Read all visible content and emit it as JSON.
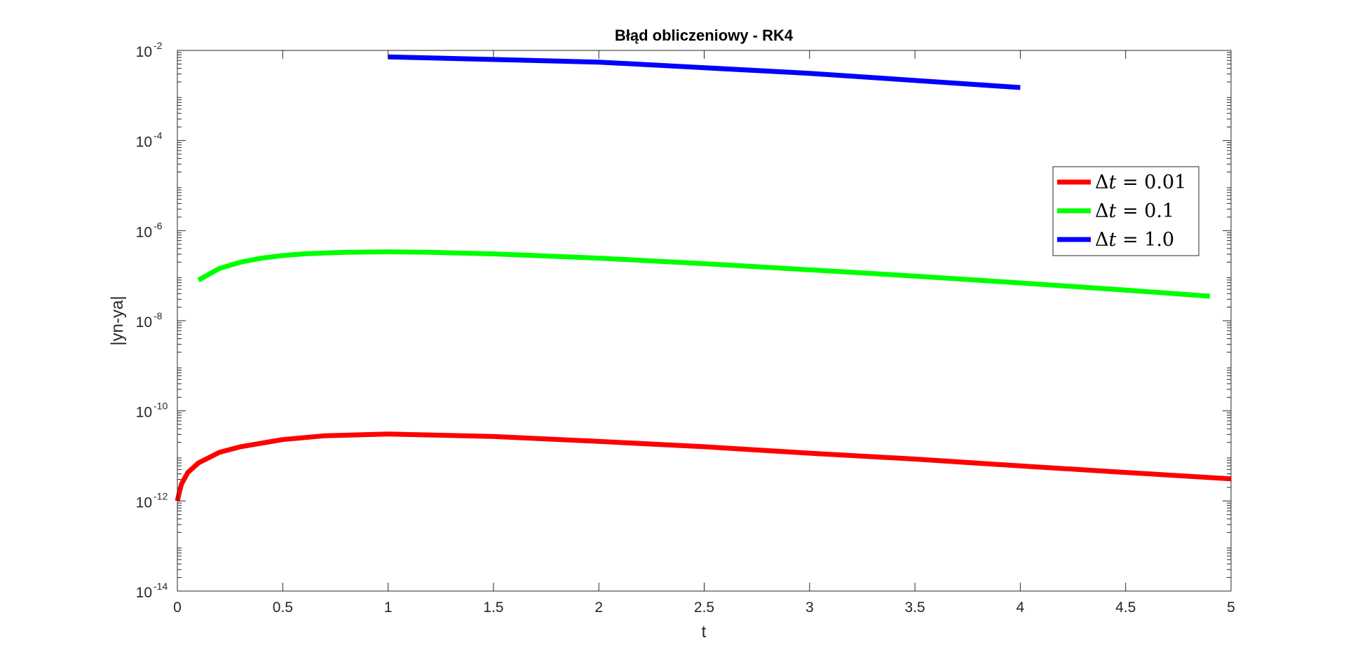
{
  "chart_data": {
    "type": "line",
    "title": "Błąd obliczeniowy - RK4",
    "xlabel": "t",
    "ylabel": "|yn-ya|",
    "xlim": [
      0,
      5
    ],
    "ylim": [
      1e-14,
      0.01
    ],
    "yscale": "log",
    "grid": false,
    "legend_position": "right",
    "x_ticks": [
      "0",
      "0.5",
      "1",
      "1.5",
      "2",
      "2.5",
      "3",
      "3.5",
      "4",
      "4.5",
      "5"
    ],
    "y_ticks": [
      {
        "base": "10",
        "exp": "-14"
      },
      {
        "base": "10",
        "exp": "-12"
      },
      {
        "base": "10",
        "exp": "-10"
      },
      {
        "base": "10",
        "exp": "-8"
      },
      {
        "base": "10",
        "exp": "-6"
      },
      {
        "base": "10",
        "exp": "-4"
      },
      {
        "base": "10",
        "exp": "-2"
      }
    ],
    "series": [
      {
        "name": "Δt = 0.01",
        "color": "#ff0000",
        "x": [
          0,
          0.01,
          0.02,
          0.05,
          0.1,
          0.2,
          0.3,
          0.5,
          0.7,
          1.0,
          1.5,
          2.0,
          2.5,
          3.0,
          3.5,
          4.0,
          4.5,
          5.0
        ],
        "y": [
          1e-12,
          1.6e-12,
          2.4e-12,
          4.3e-12,
          7e-12,
          1.2e-11,
          1.6e-11,
          2.3e-11,
          2.8e-11,
          3.05e-11,
          2.7e-11,
          2.1e-11,
          1.6e-11,
          1.15e-11,
          8.5e-12,
          6e-12,
          4.3e-12,
          3.1e-12
        ]
      },
      {
        "name": "Δt = 0.1",
        "color": "#00ff00",
        "x": [
          0.1,
          0.2,
          0.3,
          0.4,
          0.5,
          0.6,
          0.7,
          0.8,
          0.9,
          1.0,
          1.2,
          1.5,
          2.0,
          2.5,
          3.0,
          3.5,
          4.0,
          4.5,
          4.9
        ],
        "y": [
          8e-08,
          1.45e-07,
          2e-07,
          2.45e-07,
          2.8e-07,
          3.05e-07,
          3.2e-07,
          3.3e-07,
          3.35e-07,
          3.38e-07,
          3.3e-07,
          3.05e-07,
          2.45e-07,
          1.85e-07,
          1.35e-07,
          9.8e-08,
          6.9e-08,
          4.8e-08,
          3.5e-08
        ]
      },
      {
        "name": "Δt = 1.0",
        "color": "#0000ff",
        "x": [
          1,
          2,
          3,
          4
        ],
        "y": [
          0.0072,
          0.0055,
          0.0031,
          0.0015
        ]
      }
    ]
  },
  "legend": {
    "entries": [
      {
        "var": "t",
        "value": " = 0.01",
        "color": "#ff0000"
      },
      {
        "var": "t",
        "value": " = 0.1",
        "color": "#00ff00"
      },
      {
        "var": "t",
        "value": " = 1.0",
        "color": "#0000ff"
      }
    ]
  }
}
